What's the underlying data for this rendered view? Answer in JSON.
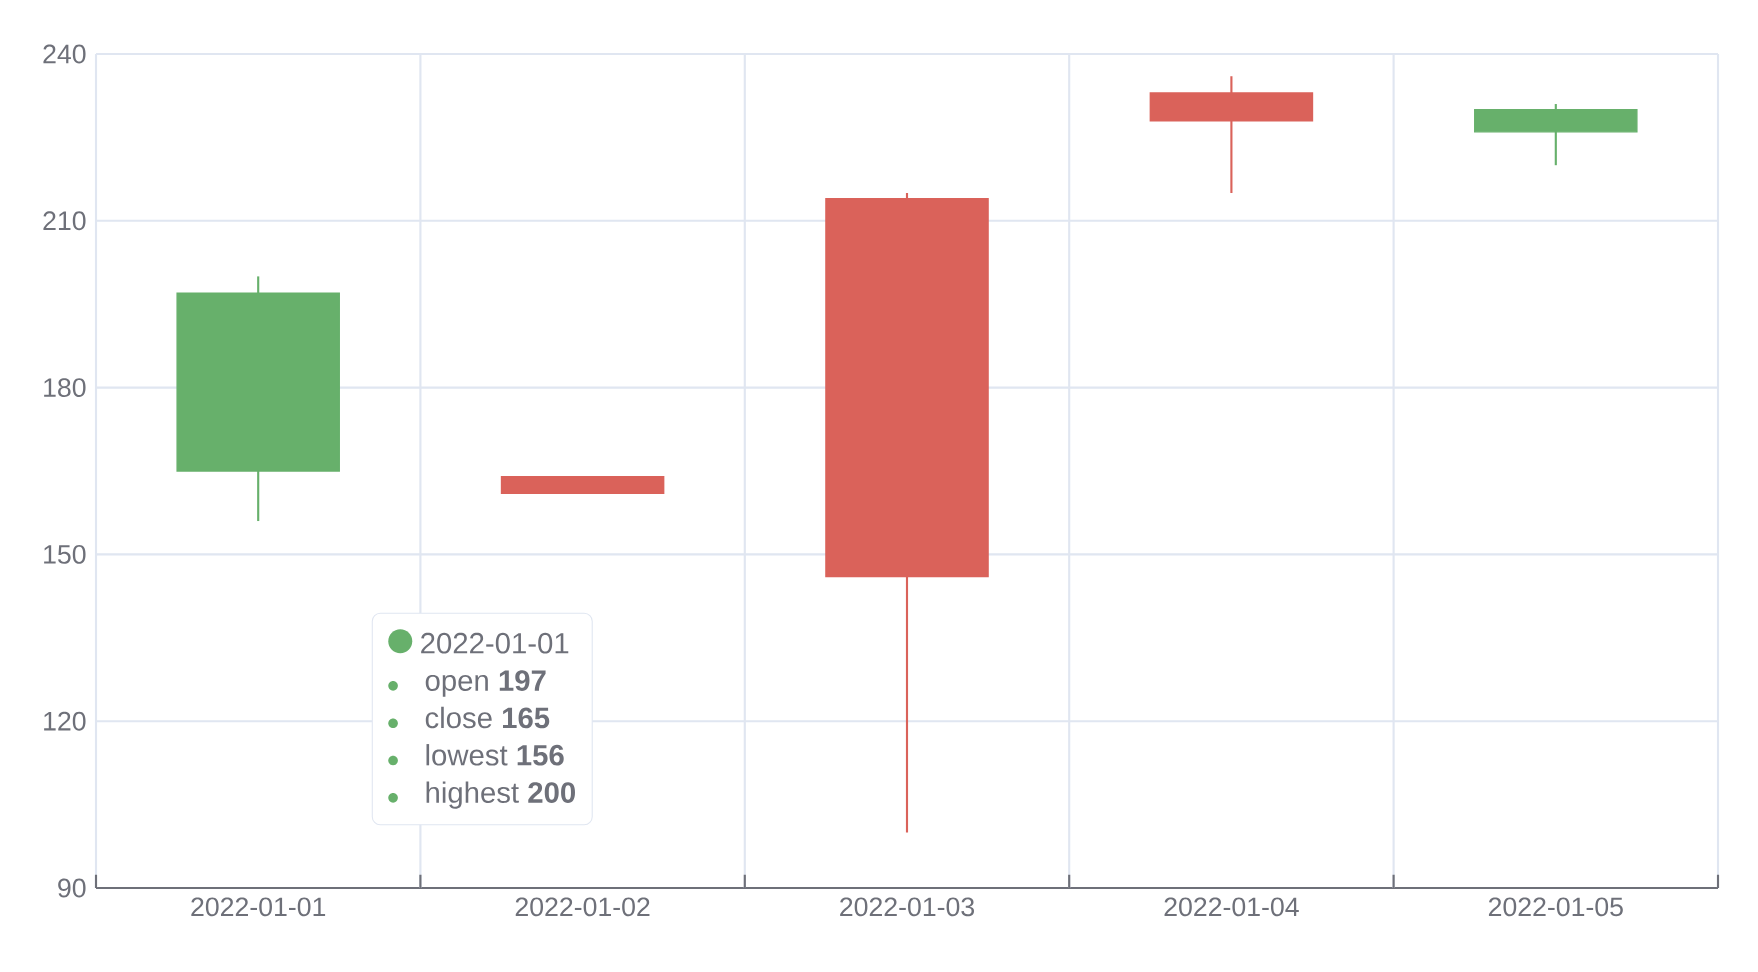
{
  "chart_data": {
    "type": "candlestick",
    "categories": [
      "2022-01-01",
      "2022-01-02",
      "2022-01-03",
      "2022-01-04",
      "2022-01-05"
    ],
    "ohlc": [
      [
        197,
        200,
        156,
        165
      ],
      [
        161,
        164,
        161,
        164
      ],
      [
        146,
        215,
        100,
        214
      ],
      [
        228,
        236,
        215,
        233
      ],
      [
        230,
        231,
        220,
        226
      ]
    ],
    "colors": [
      "#67b06b",
      "#da625a",
      "#da625a",
      "#da625a",
      "#67b06b"
    ],
    "ylim": [
      90,
      240
    ],
    "yticks": [
      90,
      120,
      150,
      180,
      210,
      240
    ],
    "grid": true,
    "annotations": [
      "2022-01-01",
      "open **197**",
      "close **165**",
      "lowest **156**",
      "highest **200**"
    ]
  }
}
